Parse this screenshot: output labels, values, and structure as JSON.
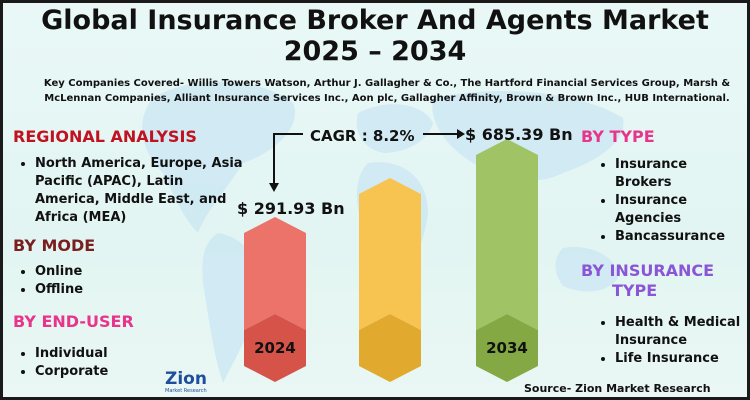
{
  "title": {
    "line1": "Global Insurance Broker And Agents Market",
    "line2": "2025 – 2034"
  },
  "companies": {
    "line1": "Key Companies Covered- Willis Towers Watson, Arthur J. Gallagher & Co., The Hartford Financial Services Group, Marsh &",
    "line2": "McLennan Companies, Alliant Insurance Services Inc., Aon plc, Gallagher Affinity, Brown & Brown Inc., HUB International."
  },
  "regional": {
    "heading": "REGIONAL ANALYSIS",
    "items": [
      "North America, Europe, Asia Pacific (APAC), Latin America, Middle East, and Africa (MEA)"
    ]
  },
  "by_mode": {
    "heading": "BY MODE",
    "items": [
      "Online",
      "Offline"
    ]
  },
  "by_end_user": {
    "heading": "BY END-USER",
    "items": [
      "Individual",
      "Corporate"
    ]
  },
  "by_type": {
    "heading": "BY TYPE",
    "items": [
      "Insurance Brokers",
      "Insurance Agencies",
      "Bancassurance"
    ]
  },
  "by_insurance_type": {
    "heading_line1": "BY INSURANCE",
    "heading_line2": "TYPE",
    "items": [
      "Health & Medical Insurance",
      "Life Insurance"
    ]
  },
  "cagr_label": "CAGR : 8.2%",
  "chart_data": {
    "type": "bar",
    "categories": [
      "2024",
      "",
      "2034"
    ],
    "values": [
      291.93,
      null,
      685.39
    ],
    "value_labels": [
      "$ 291.93 Bn",
      "",
      "$ 685.39 Bn"
    ],
    "colors": [
      "#e85a4f",
      "#f5b932",
      "#8fb84a"
    ]
  },
  "source": "Source- Zion Market Research",
  "logo": {
    "name": "Zion",
    "tagline": "Market Research"
  }
}
